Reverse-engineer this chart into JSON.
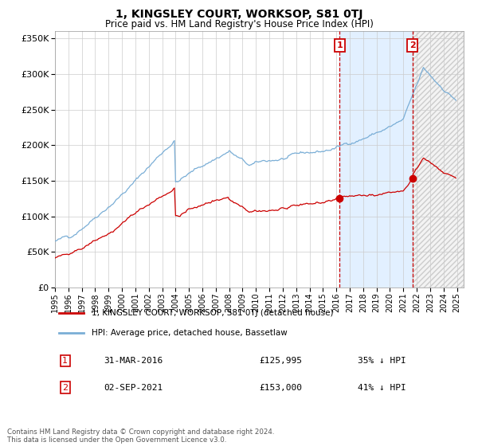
{
  "title": "1, KINGSLEY COURT, WORKSOP, S81 0TJ",
  "subtitle": "Price paid vs. HM Land Registry's House Price Index (HPI)",
  "legend_red": "1, KINGSLEY COURT, WORKSOP, S81 0TJ (detached house)",
  "legend_blue": "HPI: Average price, detached house, Bassetlaw",
  "transaction1_label": "1",
  "transaction1_date": "31-MAR-2016",
  "transaction1_price": 125995,
  "transaction1_pct": "35% ↓ HPI",
  "transaction2_label": "2",
  "transaction2_date": "02-SEP-2021",
  "transaction2_price": 153000,
  "transaction2_pct": "41% ↓ HPI",
  "transaction1_x": 2016.25,
  "transaction2_x": 2021.67,
  "red_color": "#cc0000",
  "blue_color": "#7aaed6",
  "bg_shade_color": "#ddeeff",
  "vline_color": "#cc0000",
  "annotation_box_color": "#cc0000",
  "grid_color": "#cccccc",
  "footer_text": "Contains HM Land Registry data © Crown copyright and database right 2024.\nThis data is licensed under the Open Government Licence v3.0.",
  "ylim": [
    0,
    360000
  ],
  "xlim_start": 1995.0,
  "xlim_end": 2025.5
}
